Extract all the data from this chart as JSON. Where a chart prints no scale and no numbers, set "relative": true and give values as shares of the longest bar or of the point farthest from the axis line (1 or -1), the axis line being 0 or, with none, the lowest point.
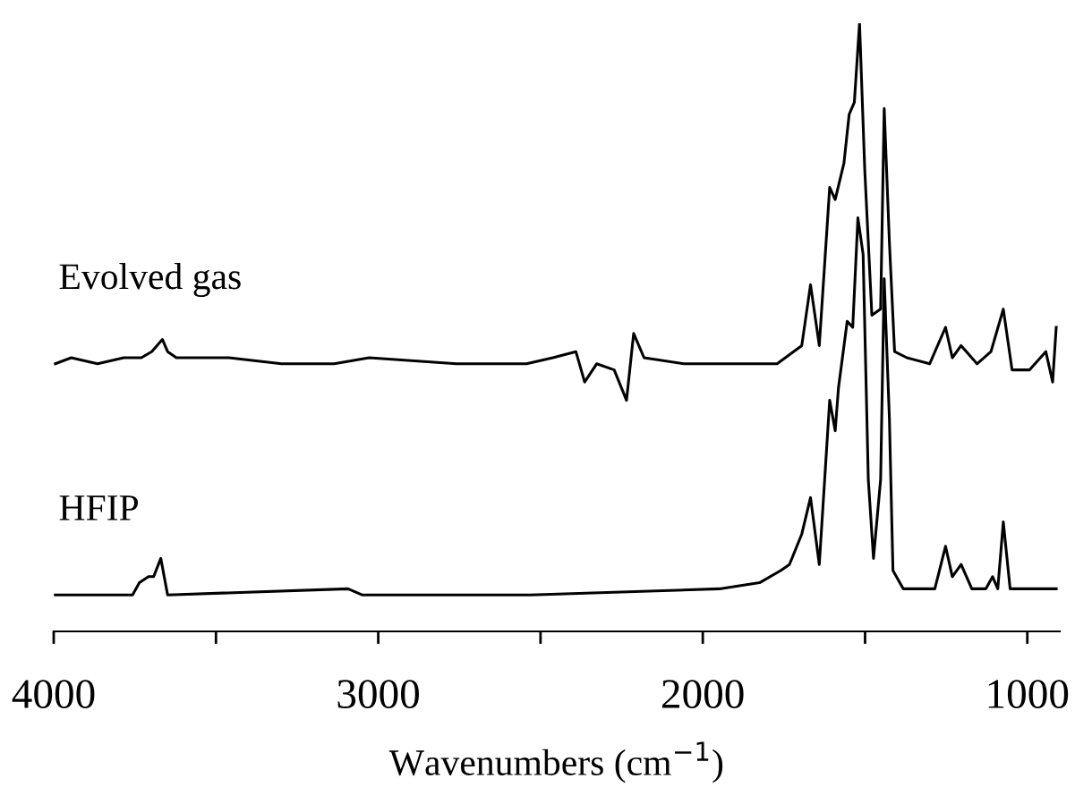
{
  "chart_data": {
    "type": "line",
    "relative": true,
    "xlabel": "Wavenumbers (cm$^{−1}$)",
    "xlim": [
      4000,
      900
    ],
    "xticks": [
      4000,
      {
        "value": 3500,
        "label": null
      },
      3000,
      {
        "value": 2500,
        "label": null
      },
      2000,
      {
        "value": 1500,
        "label": null
      },
      1000
    ],
    "tick_labels": "x",
    "grid": false,
    "legend": false,
    "marker": "none",
    "line_style": "solid",
    "series": [
      {
        "name": "Evolved gas",
        "color": "#000000",
        "x": [
          3995,
          3946,
          3865,
          3784,
          3730,
          3698,
          3665,
          3649,
          3622,
          3460,
          3298,
          3136,
          3028,
          2758,
          2543,
          2462,
          2391,
          2364,
          2327,
          2273,
          2235,
          2213,
          2181,
          2057,
          1771,
          1695,
          1668,
          1641,
          1609,
          1592,
          1565,
          1549,
          1533,
          1517,
          1501,
          1479,
          1452,
          1441,
          1425,
          1409,
          1371,
          1301,
          1252,
          1231,
          1204,
          1155,
          1112,
          1074,
          1047,
          993,
          943,
          922,
          911
        ],
        "values": [
          0.44,
          0.45,
          0.44,
          0.45,
          0.45,
          0.46,
          0.48,
          0.46,
          0.45,
          0.45,
          0.44,
          0.44,
          0.45,
          0.44,
          0.44,
          0.45,
          0.46,
          0.41,
          0.44,
          0.43,
          0.38,
          0.49,
          0.45,
          0.44,
          0.44,
          0.47,
          0.57,
          0.47,
          0.73,
          0.71,
          0.77,
          0.85,
          0.87,
          1.0,
          0.76,
          0.52,
          0.53,
          0.86,
          0.64,
          0.46,
          0.45,
          0.44,
          0.5,
          0.45,
          0.47,
          0.44,
          0.46,
          0.53,
          0.43,
          0.43,
          0.46,
          0.41,
          0.5
        ]
      },
      {
        "name": "HFIP",
        "color": "#000000",
        "x": [
          3995,
          3757,
          3736,
          3708,
          3692,
          3670,
          3649,
          3093,
          3050,
          2532,
          1949,
          1825,
          1760,
          1733,
          1695,
          1668,
          1641,
          1609,
          1592,
          1582,
          1555,
          1538,
          1522,
          1506,
          1490,
          1474,
          1452,
          1441,
          1425,
          1414,
          1382,
          1285,
          1252,
          1231,
          1204,
          1171,
          1128,
          1107,
          1091,
          1074,
          1053,
          977,
          934,
          911
        ],
        "values": [
          0.06,
          0.06,
          0.08,
          0.09,
          0.09,
          0.12,
          0.06,
          0.07,
          0.06,
          0.06,
          0.07,
          0.08,
          0.1,
          0.11,
          0.16,
          0.22,
          0.11,
          0.38,
          0.33,
          0.4,
          0.51,
          0.5,
          0.68,
          0.62,
          0.25,
          0.12,
          0.25,
          0.58,
          0.35,
          0.1,
          0.07,
          0.07,
          0.14,
          0.09,
          0.11,
          0.07,
          0.07,
          0.09,
          0.07,
          0.18,
          0.07,
          0.07,
          0.07,
          0.07
        ]
      }
    ]
  }
}
